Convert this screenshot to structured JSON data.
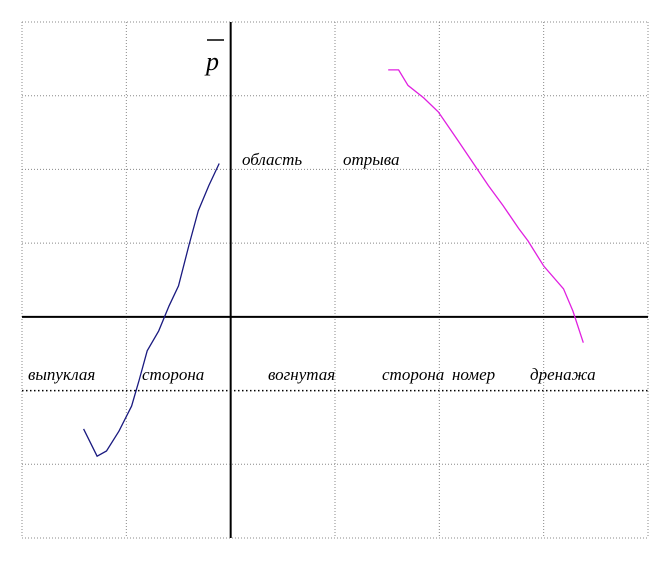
{
  "chart_data": {
    "type": "line",
    "ylabel": "p",
    "annotations": [
      "область",
      "отрыва",
      "выпуклая",
      "сторона",
      "вогнутая",
      "сторона",
      "номер",
      "дренажа"
    ],
    "xlim": [
      -2,
      4
    ],
    "ylim": [
      -3,
      4
    ],
    "xticks": [
      -2,
      -1,
      0,
      1,
      2,
      3,
      4
    ],
    "yticks": [
      -3,
      -2,
      -1,
      0,
      1,
      2,
      3,
      4
    ],
    "grid": true,
    "series": [
      {
        "color": "#1a1a80",
        "x": [
          -1.41,
          -1.28,
          -1.19,
          -1.07,
          -0.95,
          -0.88,
          -0.8,
          -0.69,
          -0.59,
          -0.5,
          -0.4,
          -0.31,
          -0.21,
          -0.11
        ],
        "values": [
          -1.52,
          -1.89,
          -1.82,
          -1.55,
          -1.21,
          -0.87,
          -0.46,
          -0.19,
          0.15,
          0.42,
          0.97,
          1.44,
          1.78,
          2.08
        ]
      },
      {
        "color": "#e020e0",
        "x": [
          1.51,
          1.61,
          1.7,
          1.85,
          1.99,
          2.18,
          2.47,
          2.61,
          2.76,
          2.85,
          3.0,
          3.19,
          3.28,
          3.38
        ],
        "values": [
          3.35,
          3.35,
          3.14,
          2.97,
          2.78,
          2.39,
          1.78,
          1.51,
          1.2,
          1.03,
          0.69,
          0.38,
          0.08,
          -0.35
        ]
      }
    ]
  }
}
